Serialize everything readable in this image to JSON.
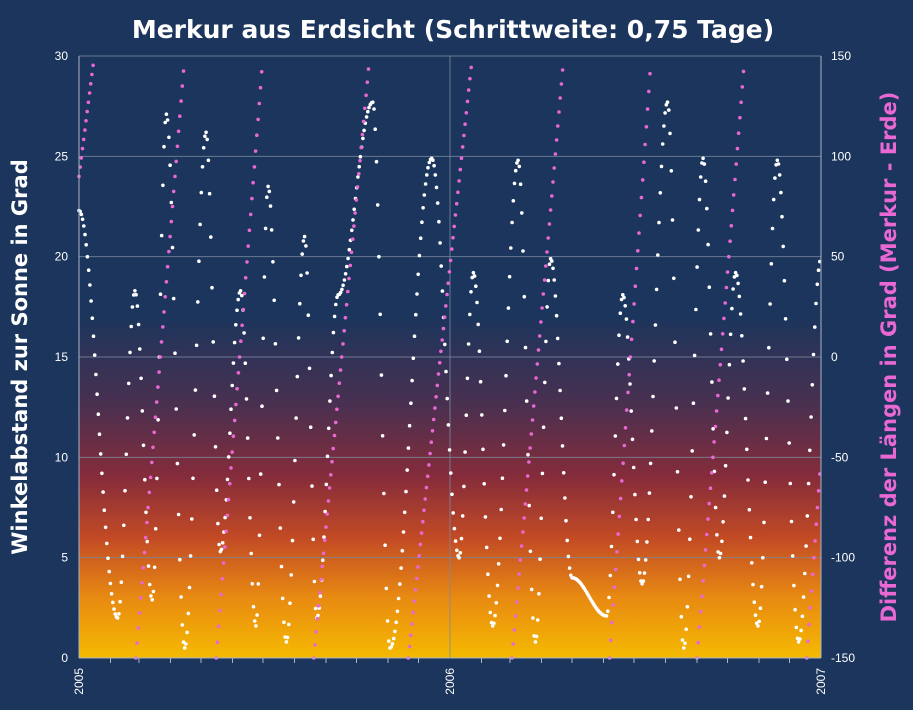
{
  "chart_data": {
    "type": "scatter",
    "title": "Merkur aus Erdsicht (Schrittweite: 0,75 Tage)",
    "xlabel": "",
    "ylabel": "Winkelabstand  zur Sonne  in Grad",
    "y2label": "Differenz  der  Längen  in  Grad  (Merkur - Erde)",
    "x_range": [
      "2005-01-01",
      "2007-01-01"
    ],
    "x_ticks": [
      "2005",
      "2006",
      "2007"
    ],
    "ylim": [
      0,
      30
    ],
    "y_ticks": [
      "0",
      "5",
      "10",
      "15",
      "20",
      "25",
      "30"
    ],
    "y2lim": [
      -150,
      150
    ],
    "y2_ticks": [
      "-150",
      "-100",
      "-50",
      "0",
      "50",
      "100",
      "150"
    ],
    "step_days": 0.75,
    "grid": true,
    "series": [
      {
        "axis": "left",
        "color": "#ffffff",
        "x": [
          "2005-01-01",
          "2005-02-08",
          "2005-02-25",
          "2005-03-14",
          "2005-03-28",
          "2005-04-15",
          "2005-05-06",
          "2005-05-20",
          "2005-06-09",
          "2005-06-24",
          "2005-07-06",
          "2005-07-24",
          "2005-08-11",
          "2005-08-23",
          "2005-09-13",
          "2005-10-17",
          "2005-11-03",
          "2005-12-14",
          "2006-01-10",
          "2006-01-24",
          "2006-02-12",
          "2006-03-09",
          "2006-03-26",
          "2006-04-10",
          "2006-05-01",
          "2006-06-04",
          "2006-06-20",
          "2006-07-09",
          "2006-08-03",
          "2006-08-19",
          "2006-09-07",
          "2006-09-23",
          "2006-10-09",
          "2006-10-31",
          "2006-11-19",
          "2006-12-10",
          "2007-01-01"
        ],
        "y": [
          22.3,
          2.0,
          18.3,
          2.9,
          27.1,
          0.5,
          26.2,
          5.3,
          18.3,
          1.6,
          23.5,
          0.8,
          21.0,
          2.0,
          18.1,
          27.7,
          0.5,
          24.9,
          5.0,
          19.2,
          1.6,
          24.8,
          0.8,
          19.9,
          4.0,
          2.1,
          18.1,
          3.7,
          27.7,
          0.5,
          24.9,
          5.0,
          19.2,
          1.6,
          24.8,
          0.8,
          19.9
        ]
      },
      {
        "axis": "right",
        "color": "#e968d3",
        "x": [
          "2005-01-01",
          "2005-01-16",
          "2005-01-17",
          "2005-02-26",
          "2005-04-15",
          "2005-04-16",
          "2005-05-16",
          "2005-07-01",
          "2005-07-07",
          "2005-08-20",
          "2005-10-14",
          "2005-10-15",
          "2005-11-21",
          "2006-01-23",
          "2006-01-24",
          "2006-03-03",
          "2006-04-23",
          "2006-04-24",
          "2006-06-07",
          "2006-07-18",
          "2006-07-19",
          "2006-09-01",
          "2006-10-18",
          "2006-10-19",
          "2006-12-18",
          "2007-01-01"
        ],
        "y": [
          90,
          150,
          null,
          -150,
          150,
          null,
          -150,
          150,
          null,
          -150,
          150,
          null,
          -150,
          150,
          null,
          -150,
          150,
          null,
          -150,
          150,
          null,
          -150,
          150,
          null,
          -150,
          -50
        ]
      }
    ]
  }
}
